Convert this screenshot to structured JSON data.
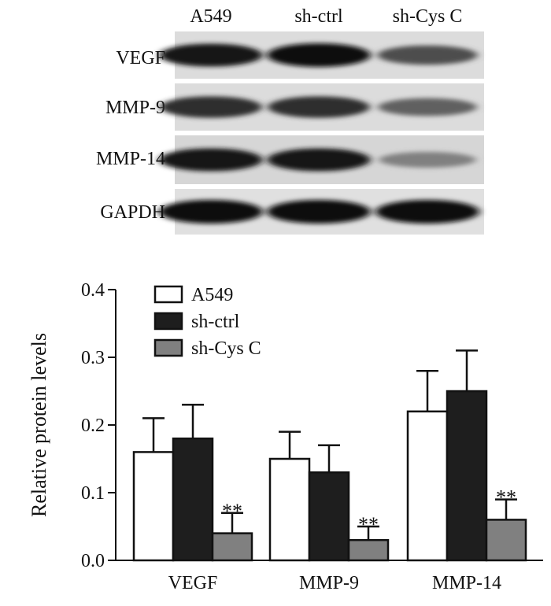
{
  "blot": {
    "lanes": [
      "A549",
      "sh-ctrl",
      "sh-Cys C"
    ],
    "rows": [
      {
        "label": "VEGF",
        "intensity": [
          0.95,
          1.0,
          0.7
        ]
      },
      {
        "label": "MMP-9",
        "intensity": [
          0.85,
          0.85,
          0.6
        ]
      },
      {
        "label": "MMP-14",
        "intensity": [
          0.95,
          0.95,
          0.45
        ]
      },
      {
        "label": "GAPDH",
        "intensity": [
          1.0,
          1.0,
          1.0
        ]
      }
    ]
  },
  "chart_data": {
    "type": "bar",
    "title": "",
    "xlabel": "",
    "ylabel": "Relative protein levels",
    "ylim": [
      0,
      0.4
    ],
    "yticks": [
      "0.0",
      "0.1",
      "0.2",
      "0.3",
      "0.4"
    ],
    "categories": [
      "VEGF",
      "MMP-9",
      "MMP-14"
    ],
    "series": [
      {
        "name": "A549",
        "color": "#ffffff",
        "values": [
          0.16,
          0.15,
          0.22
        ],
        "errors": [
          0.05,
          0.04,
          0.06
        ]
      },
      {
        "name": "sh-ctrl",
        "color": "#1e1e1e",
        "values": [
          0.18,
          0.13,
          0.25
        ],
        "errors": [
          0.05,
          0.04,
          0.06
        ]
      },
      {
        "name": "sh-Cys C",
        "color": "#808080",
        "values": [
          0.04,
          0.03,
          0.06
        ],
        "errors": [
          0.03,
          0.02,
          0.03
        ]
      }
    ],
    "annotations": [
      {
        "category": "VEGF",
        "series": "sh-Cys C",
        "text": "**"
      },
      {
        "category": "MMP-9",
        "series": "sh-Cys C",
        "text": "**"
      },
      {
        "category": "MMP-14",
        "series": "sh-Cys C",
        "text": "**"
      }
    ],
    "legend": "top-left",
    "grid": false
  }
}
